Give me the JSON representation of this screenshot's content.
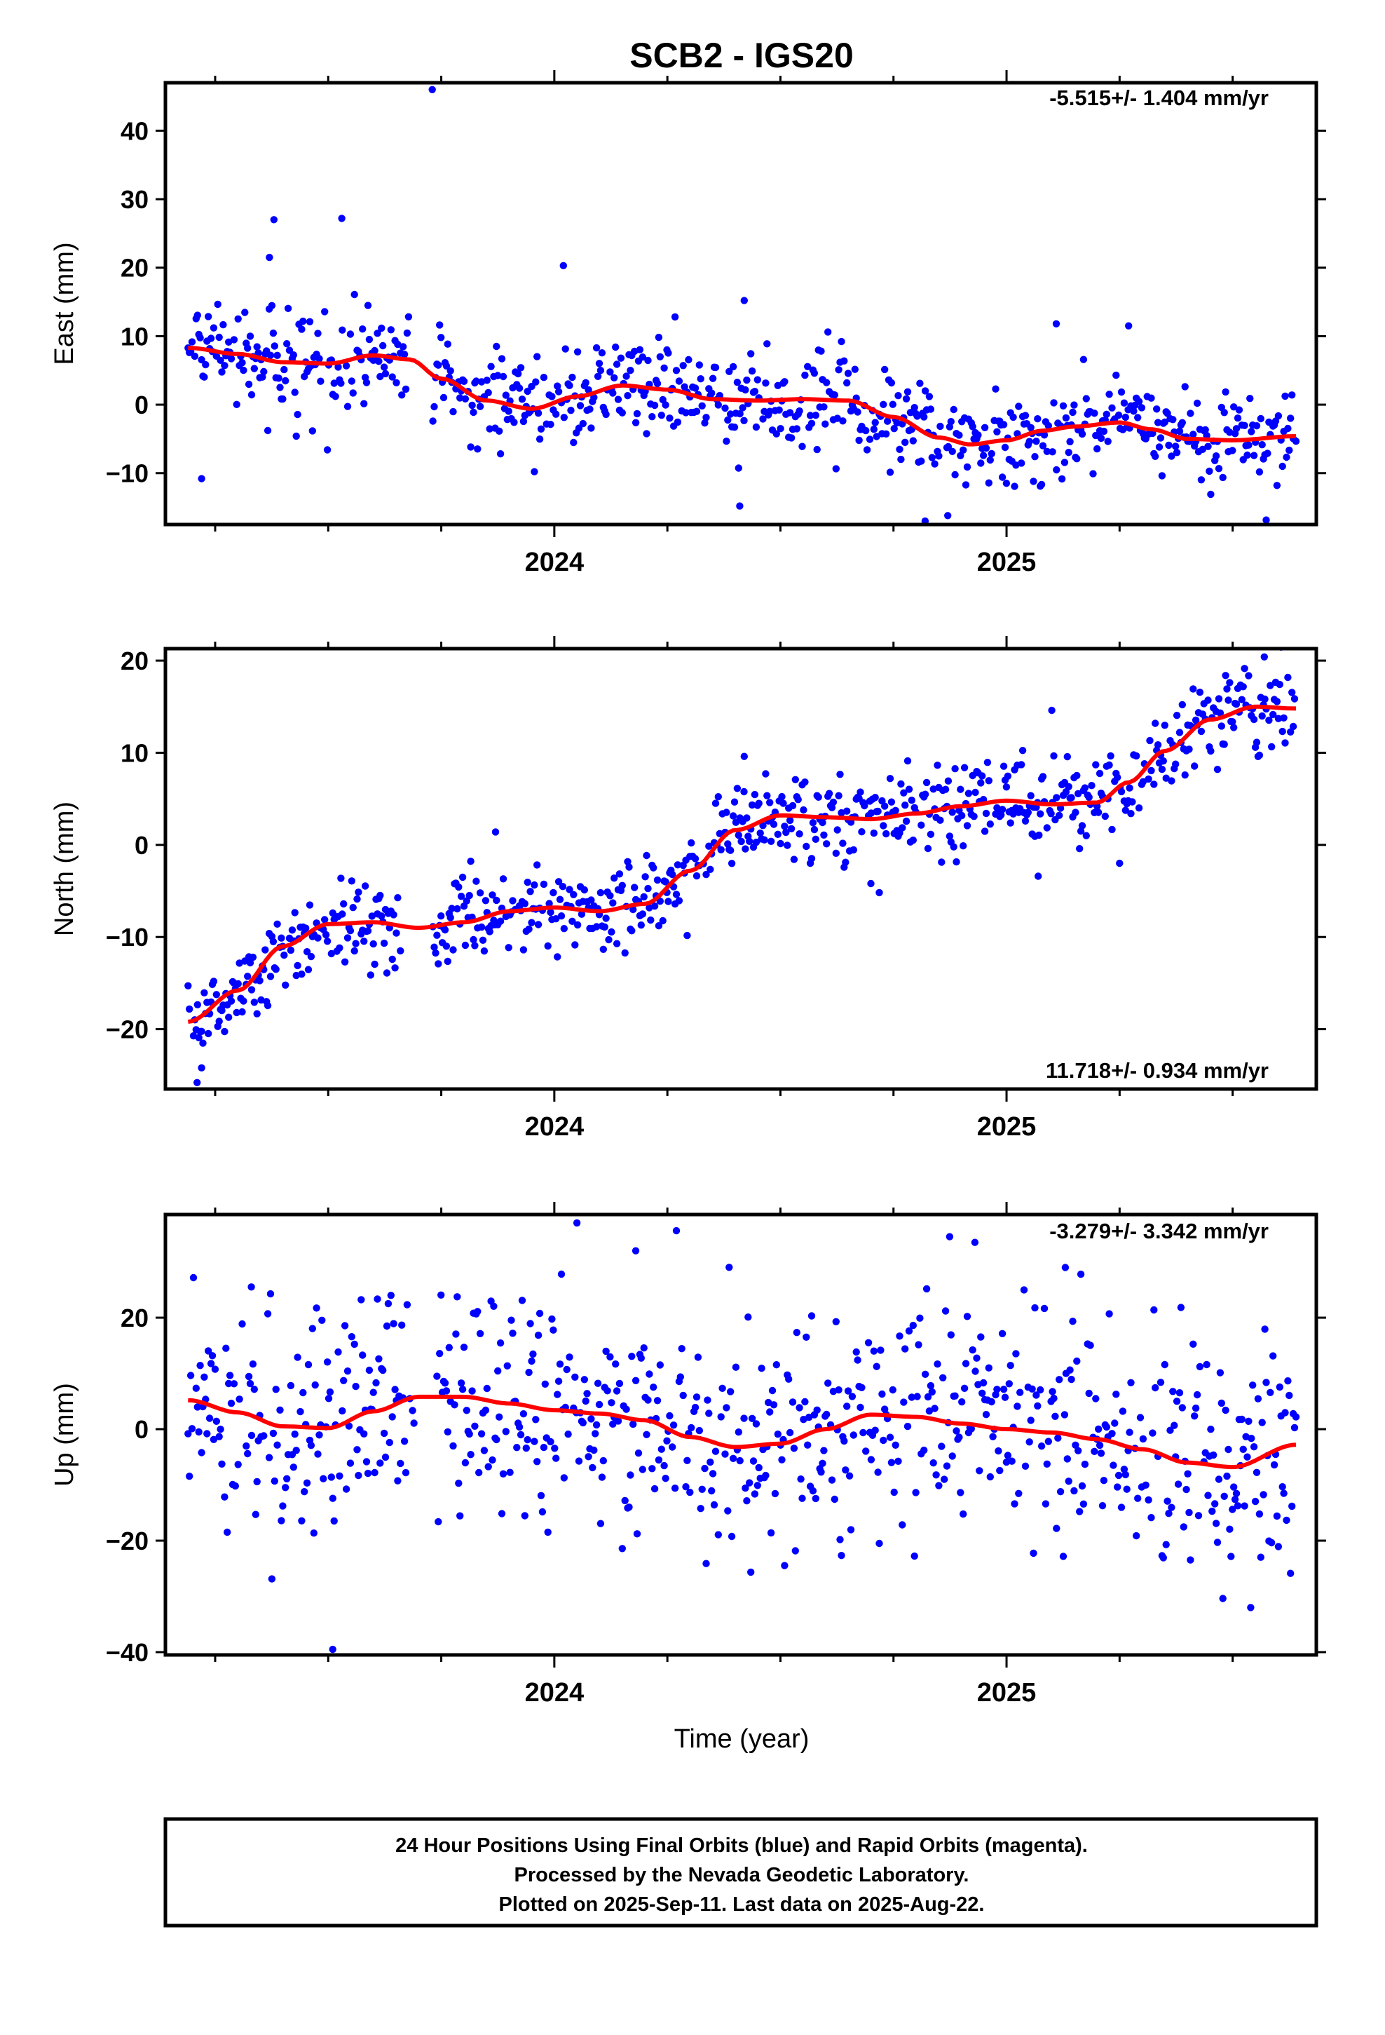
{
  "title": "SCB2 - IGS20",
  "xlabel": "Time (year)",
  "footer": {
    "line1": "24 Hour Positions Using Final Orbits (blue) and Rapid Orbits (magenta).",
    "line2": "Processed by the Nevada Geodetic Laboratory.",
    "line3": "Plotted on 2025-Sep-11. Last data on 2025-Aug-22."
  },
  "colors": {
    "points": "#0000ff",
    "fit": "#ff0000",
    "frame": "#000000"
  },
  "chart_data": [
    {
      "type": "scatter",
      "panel": "east",
      "ylabel": "East (mm)",
      "rate_label": "-5.515+/- 1.404 mm/yr",
      "xlim": [
        2023.14,
        2025.685
      ],
      "ylim": [
        -17.5,
        47
      ],
      "yticks": [
        -10,
        0,
        10,
        20,
        30,
        40
      ],
      "xticks": [
        2024,
        2025
      ],
      "xticks_minor": [
        2023.25,
        2023.5,
        2023.75,
        2024.25,
        2024.5,
        2024.75,
        2025.25,
        2025.5
      ],
      "x_start": 2023.19,
      "x_end": 2025.64,
      "n_points": 820,
      "trend_model": "piecewise fit sampled below; daily values scatter around it",
      "fit": {
        "x": [
          2023.19,
          2023.3,
          2023.4,
          2023.5,
          2023.6,
          2023.68,
          2023.75,
          2023.85,
          2023.95,
          2024.05,
          2024.15,
          2024.25,
          2024.35,
          2024.45,
          2024.55,
          2024.65,
          2024.75,
          2024.85,
          2024.92,
          2025.0,
          2025.08,
          2025.15,
          2025.25,
          2025.32,
          2025.4,
          2025.5,
          2025.64
        ],
        "y": [
          8.3,
          7.4,
          6.2,
          6.0,
          7.2,
          6.6,
          3.8,
          0.6,
          -0.6,
          1.2,
          2.8,
          2.2,
          0.8,
          0.6,
          0.8,
          0.6,
          -1.8,
          -4.8,
          -5.8,
          -5.2,
          -3.8,
          -3.2,
          -2.6,
          -3.6,
          -5.0,
          -5.2,
          -4.6
        ]
      },
      "noise": {
        "sigma": 3.6,
        "outliers": [
          [
            2023.73,
            46.0
          ],
          [
            2023.38,
            27.0
          ],
          [
            2023.53,
            27.2
          ],
          [
            2023.37,
            21.5
          ],
          [
            2024.02,
            20.3
          ],
          [
            2024.42,
            15.2
          ],
          [
            2023.22,
            -10.8
          ],
          [
            2024.82,
            -17.0
          ],
          [
            2024.87,
            -16.2
          ],
          [
            2024.41,
            -14.8
          ],
          [
            2025.11,
            11.8
          ],
          [
            2025.27,
            11.5
          ]
        ]
      },
      "gap": [
        2023.68,
        2023.73
      ]
    },
    {
      "type": "scatter",
      "panel": "north",
      "ylabel": "North (mm)",
      "rate_label": "11.718+/- 0.934 mm/yr",
      "xlim": [
        2023.14,
        2025.685
      ],
      "ylim": [
        -26.5,
        21.3
      ],
      "yticks": [
        -20,
        -10,
        0,
        10,
        20
      ],
      "xticks": [
        2024,
        2025
      ],
      "xticks_minor": [
        2023.25,
        2023.5,
        2023.75,
        2024.25,
        2024.5,
        2024.75,
        2025.25,
        2025.5
      ],
      "x_start": 2023.19,
      "x_end": 2025.64,
      "n_points": 820,
      "trend_model": "piecewise fit sampled below; daily values scatter around it",
      "fit": {
        "x": [
          2023.19,
          2023.3,
          2023.4,
          2023.5,
          2023.6,
          2023.7,
          2023.8,
          2023.9,
          2024.0,
          2024.1,
          2024.2,
          2024.3,
          2024.4,
          2024.5,
          2024.6,
          2024.7,
          2024.8,
          2024.9,
          2025.0,
          2025.1,
          2025.2,
          2025.27,
          2025.35,
          2025.45,
          2025.55,
          2025.64
        ],
        "y": [
          -19.2,
          -15.8,
          -11.0,
          -8.6,
          -8.4,
          -9.0,
          -8.4,
          -7.2,
          -6.8,
          -7.2,
          -6.4,
          -2.8,
          1.6,
          3.2,
          3.0,
          2.8,
          3.4,
          4.2,
          4.8,
          4.4,
          4.6,
          6.8,
          10.2,
          13.6,
          15.0,
          14.8
        ]
      },
      "noise": {
        "sigma": 2.4,
        "outliers": [
          [
            2023.21,
            -25.8
          ],
          [
            2023.22,
            -24.2
          ],
          [
            2023.87,
            1.4
          ],
          [
            2024.42,
            9.6
          ],
          [
            2025.1,
            14.6
          ],
          [
            2025.07,
            -3.4
          ],
          [
            2025.25,
            -2.0
          ],
          [
            2025.57,
            20.4
          ],
          [
            2024.7,
            -4.2
          ]
        ]
      },
      "gap": [
        2023.66,
        2023.73
      ]
    },
    {
      "type": "scatter",
      "panel": "up",
      "ylabel": "Up (mm)",
      "rate_label": "-3.279+/- 3.342 mm/yr",
      "xlim": [
        2023.14,
        2025.685
      ],
      "ylim": [
        -40.5,
        38.5
      ],
      "yticks": [
        -40,
        -20,
        0,
        20
      ],
      "xticks": [
        2024,
        2025
      ],
      "xticks_minor": [
        2023.25,
        2023.5,
        2023.75,
        2024.25,
        2024.5,
        2024.75,
        2025.25,
        2025.5
      ],
      "x_start": 2023.19,
      "x_end": 2025.64,
      "n_points": 820,
      "trend_model": "piecewise fit sampled below; daily values scatter around it",
      "fit": {
        "x": [
          2023.19,
          2023.3,
          2023.4,
          2023.5,
          2023.6,
          2023.7,
          2023.8,
          2023.9,
          2024.0,
          2024.1,
          2024.2,
          2024.3,
          2024.4,
          2024.5,
          2024.6,
          2024.7,
          2024.8,
          2024.9,
          2025.0,
          2025.1,
          2025.2,
          2025.3,
          2025.4,
          2025.5,
          2025.64
        ],
        "y": [
          5.2,
          3.0,
          0.5,
          0.2,
          3.2,
          5.8,
          5.8,
          4.6,
          3.4,
          2.8,
          1.6,
          -1.4,
          -3.2,
          -2.6,
          0.0,
          2.6,
          2.2,
          1.0,
          0.0,
          -0.6,
          -1.8,
          -3.6,
          -6.0,
          -6.8,
          -2.8
        ]
      },
      "noise": {
        "sigma": 10.5,
        "outliers": [
          [
            2023.51,
            -39.5
          ],
          [
            2024.05,
            37.0
          ],
          [
            2024.18,
            32.0
          ],
          [
            2024.93,
            33.5
          ],
          [
            2025.54,
            -32.0
          ],
          [
            2025.13,
            29.0
          ],
          [
            2023.33,
            25.5
          ]
        ]
      },
      "gap": [
        2023.69,
        2023.74
      ]
    }
  ]
}
